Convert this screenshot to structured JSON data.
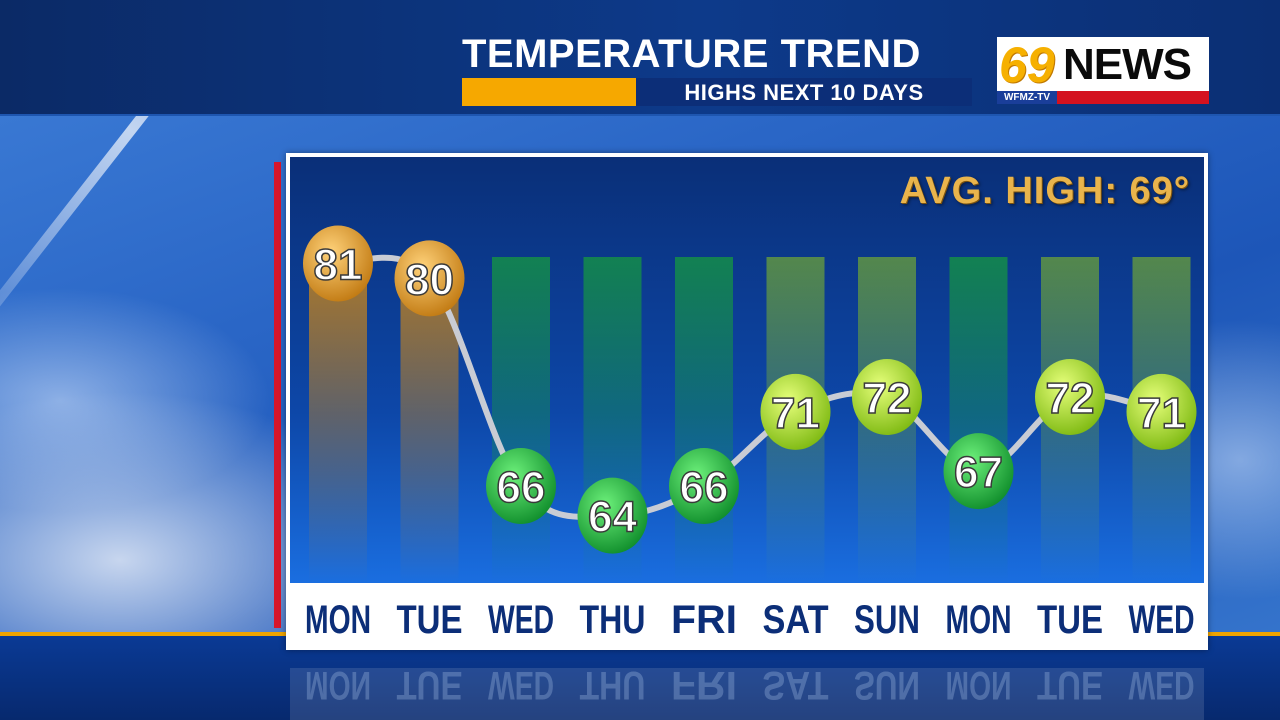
{
  "header": {
    "title": "TEMPERATURE TREND",
    "subtitle": "HIGHS NEXT 10 DAYS"
  },
  "logo": {
    "number": "69",
    "word": "NEWS",
    "station": "WFMZ-TV"
  },
  "avg_high": "AVG. HIGH: 69°",
  "colors": {
    "warm": "#e39a1a",
    "mild": "#9ed81c",
    "cool": "#19b43a",
    "day_label": "#0c2e78",
    "accent_gold": "#f6a800",
    "accent_red": "#d6162a"
  },
  "chart_data": {
    "type": "line",
    "categories": [
      "MON",
      "TUE",
      "WED",
      "THU",
      "FRI",
      "SAT",
      "SUN",
      "MON",
      "TUE",
      "WED"
    ],
    "series": [
      {
        "values": [
          81,
          80,
          66,
          64,
          66,
          71,
          72,
          67,
          72,
          71
        ]
      }
    ],
    "data_labels": [
      "81",
      "80",
      "66",
      "64",
      "66",
      "71",
      "72",
      "67",
      "72",
      "71"
    ],
    "ylim": [
      60,
      84
    ],
    "title": "TEMPERATURE TREND",
    "subtitle": "HIGHS NEXT 10 DAYS",
    "xlabel": "",
    "ylabel": "",
    "annotation": "AVG. HIGH: 69°",
    "grid": false,
    "legend": "none"
  }
}
